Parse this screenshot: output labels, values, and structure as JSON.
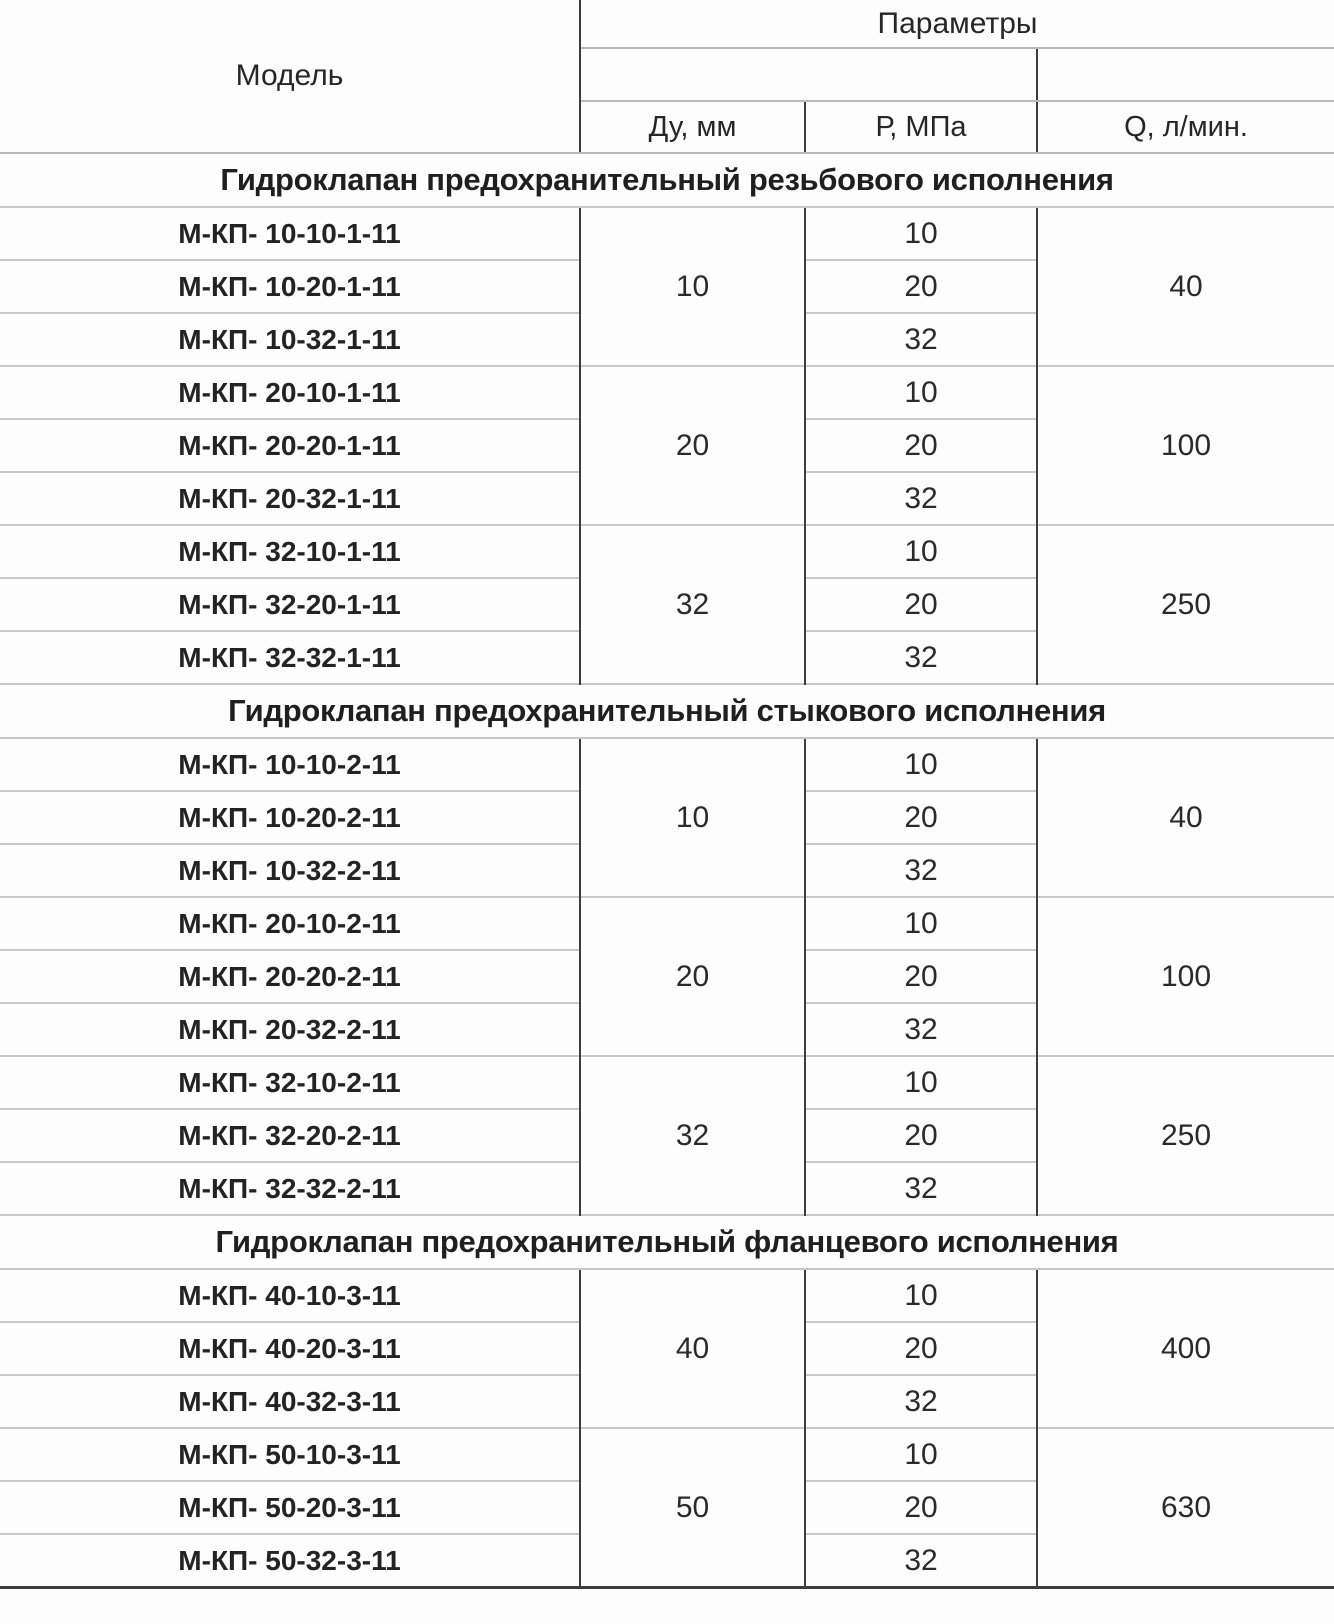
{
  "table": {
    "header": {
      "model": "Модель",
      "params_group": "Параметры",
      "du": "Ду, мм",
      "p": "Р, МПа",
      "q": "Q, л/мин."
    },
    "colors": {
      "grid_light": "#c9c9c9",
      "grid_dark": "#3d3d3d",
      "text": "#262626",
      "background": "#fdfdfd"
    },
    "sections": [
      {
        "title": "Гидроклапан предохранительный резьбового исполнения",
        "groups": [
          {
            "du": "10",
            "q": "40",
            "rows": [
              {
                "model": "М-КП- 10-10-1-11",
                "p": "10"
              },
              {
                "model": "М-КП- 10-20-1-11",
                "p": "20"
              },
              {
                "model": "М-КП- 10-32-1-11",
                "p": "32"
              }
            ]
          },
          {
            "du": "20",
            "q": "100",
            "rows": [
              {
                "model": "М-КП- 20-10-1-11",
                "p": "10"
              },
              {
                "model": "М-КП- 20-20-1-11",
                "p": "20"
              },
              {
                "model": "М-КП- 20-32-1-11",
                "p": "32"
              }
            ]
          },
          {
            "du": "32",
            "q": "250",
            "rows": [
              {
                "model": "М-КП- 32-10-1-11",
                "p": "10"
              },
              {
                "model": "М-КП- 32-20-1-11",
                "p": "20"
              },
              {
                "model": "М-КП- 32-32-1-11",
                "p": "32"
              }
            ]
          }
        ]
      },
      {
        "title": "Гидроклапан предохранительный стыкового исполнения",
        "groups": [
          {
            "du": "10",
            "q": "40",
            "rows": [
              {
                "model": "М-КП- 10-10-2-11",
                "p": "10"
              },
              {
                "model": "М-КП- 10-20-2-11",
                "p": "20"
              },
              {
                "model": "М-КП- 10-32-2-11",
                "p": "32"
              }
            ]
          },
          {
            "du": "20",
            "q": "100",
            "rows": [
              {
                "model": "М-КП- 20-10-2-11",
                "p": "10"
              },
              {
                "model": "М-КП- 20-20-2-11",
                "p": "20"
              },
              {
                "model": "М-КП- 20-32-2-11",
                "p": "32"
              }
            ]
          },
          {
            "du": "32",
            "q": "250",
            "rows": [
              {
                "model": "М-КП- 32-10-2-11",
                "p": "10"
              },
              {
                "model": "М-КП- 32-20-2-11",
                "p": "20"
              },
              {
                "model": "М-КП- 32-32-2-11",
                "p": "32"
              }
            ]
          }
        ]
      },
      {
        "title": "Гидроклапан предохранительный фланцевого исполнения",
        "groups": [
          {
            "du": "40",
            "q": "400",
            "rows": [
              {
                "model": "М-КП- 40-10-3-11",
                "p": "10"
              },
              {
                "model": "М-КП- 40-20-3-11",
                "p": "20"
              },
              {
                "model": "М-КП- 40-32-3-11",
                "p": "32"
              }
            ]
          },
          {
            "du": "50",
            "q": "630",
            "rows": [
              {
                "model": "М-КП- 50-10-3-11",
                "p": "10"
              },
              {
                "model": "М-КП- 50-20-3-11",
                "p": "20"
              },
              {
                "model": "М-КП- 50-32-3-11",
                "p": "32"
              }
            ]
          }
        ]
      }
    ]
  }
}
